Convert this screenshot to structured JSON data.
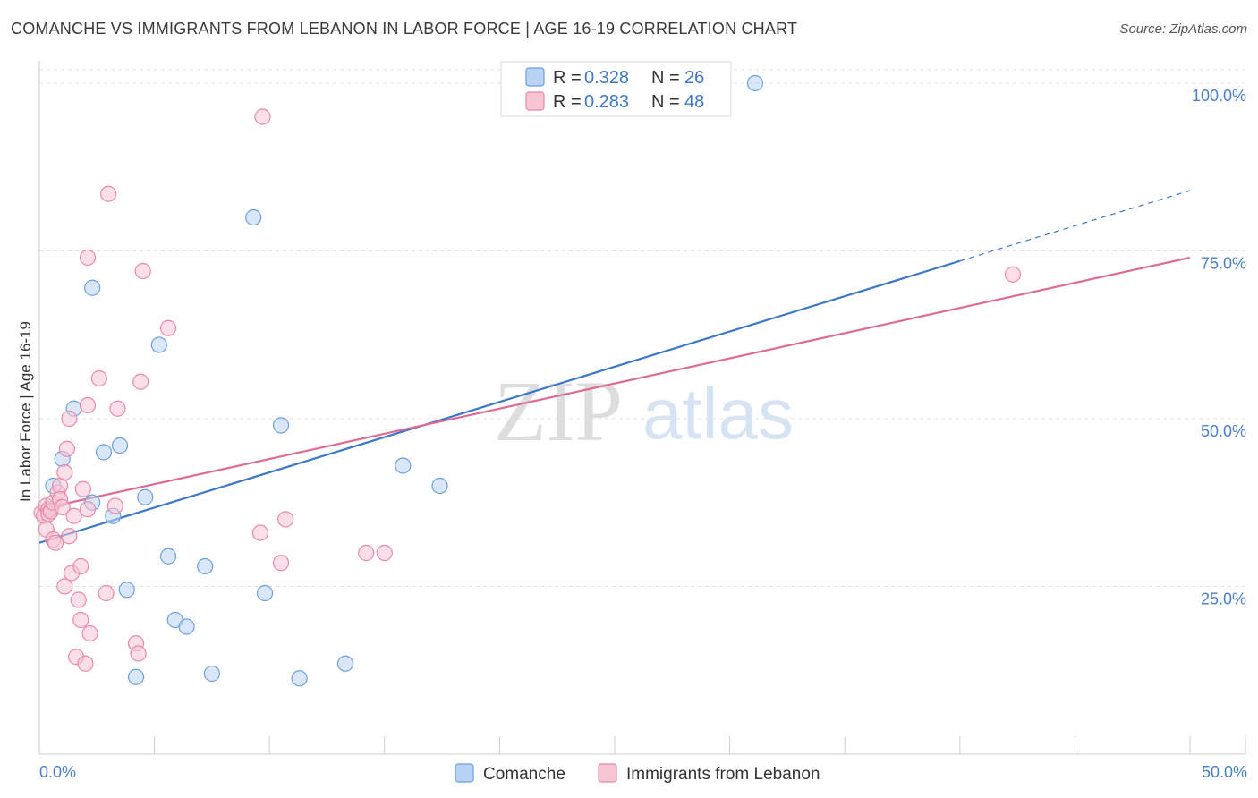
{
  "header": {
    "title": "COMANCHE VS IMMIGRANTS FROM LEBANON IN LABOR FORCE | AGE 16-19 CORRELATION CHART",
    "source": "Source: ZipAtlas.com"
  },
  "watermark": {
    "zip": "ZIP",
    "atlas": "atlas"
  },
  "legend": {
    "r_label": "R =",
    "n_label": "N =",
    "entries": [
      {
        "name": "Comanche",
        "r": "0.328",
        "n": "26",
        "color": "#6aa0e0",
        "fill": "#b9d3f4"
      },
      {
        "name": "Immigrants from Lebanon",
        "r": "0.283",
        "n": "48",
        "color": "#e889a8",
        "fill": "#f8c5d5"
      }
    ]
  },
  "chart_data": {
    "type": "scatter",
    "title": "COMANCHE VS IMMIGRANTS FROM LEBANON IN LABOR FORCE | AGE 16-19 CORRELATION CHART",
    "xlabel": "",
    "ylabel": "In Labor Force | Age 16-19",
    "xlim": [
      0,
      50
    ],
    "ylim": [
      0,
      102
    ],
    "x_tick_labels": [
      "0.0%",
      "50.0%"
    ],
    "y_ticks": [
      25,
      50,
      75,
      100
    ],
    "y_tick_labels": [
      "25.0%",
      "50.0%",
      "75.0%",
      "100.0%"
    ],
    "grid": true,
    "series": [
      {
        "name": "Comanche",
        "color": "#3b78c9",
        "fill": "#b9d3f4",
        "trend": {
          "x0": 0,
          "y0": 31.5,
          "x1": 40,
          "y1": 73.5,
          "dash_to_x": 50,
          "dash_to_y": 84
        },
        "points": [
          [
            0.5,
            36.5
          ],
          [
            0.6,
            40
          ],
          [
            1.0,
            44
          ],
          [
            1.5,
            51.5
          ],
          [
            2.3,
            37.5
          ],
          [
            2.3,
            69.5
          ],
          [
            2.8,
            45
          ],
          [
            3.2,
            35.5
          ],
          [
            3.5,
            46
          ],
          [
            3.8,
            24.5
          ],
          [
            4.2,
            11.5
          ],
          [
            4.6,
            38.3
          ],
          [
            5.2,
            61
          ],
          [
            5.6,
            29.5
          ],
          [
            5.9,
            20
          ],
          [
            6.4,
            19
          ],
          [
            7.2,
            28
          ],
          [
            7.5,
            12
          ],
          [
            9.3,
            80
          ],
          [
            9.8,
            24
          ],
          [
            10.5,
            49
          ],
          [
            11.3,
            11.3
          ],
          [
            13.3,
            13.5
          ],
          [
            15.8,
            43
          ],
          [
            17.4,
            40
          ],
          [
            31.1,
            100
          ]
        ]
      },
      {
        "name": "Immigrants from Lebanon",
        "color": "#e06a94",
        "fill": "#f8c5d5",
        "trend": {
          "x0": 0,
          "y0": 36.5,
          "x1": 50,
          "y1": 74
        },
        "points": [
          [
            0.1,
            36
          ],
          [
            0.2,
            35.5
          ],
          [
            0.3,
            37
          ],
          [
            0.3,
            33.5
          ],
          [
            0.4,
            36.5
          ],
          [
            0.4,
            35.8
          ],
          [
            0.5,
            36.2
          ],
          [
            0.6,
            37.5
          ],
          [
            0.6,
            32
          ],
          [
            0.7,
            31.5
          ],
          [
            0.8,
            39
          ],
          [
            0.9,
            40
          ],
          [
            0.9,
            38
          ],
          [
            1.0,
            36.8
          ],
          [
            1.1,
            25
          ],
          [
            1.1,
            42
          ],
          [
            1.2,
            45.5
          ],
          [
            1.3,
            50
          ],
          [
            1.3,
            32.5
          ],
          [
            1.4,
            27
          ],
          [
            1.5,
            35.5
          ],
          [
            1.6,
            14.5
          ],
          [
            1.7,
            23
          ],
          [
            1.8,
            28
          ],
          [
            1.8,
            20
          ],
          [
            1.9,
            39.5
          ],
          [
            2.0,
            13.5
          ],
          [
            2.1,
            74
          ],
          [
            2.1,
            52
          ],
          [
            2.1,
            36.5
          ],
          [
            2.2,
            18
          ],
          [
            2.6,
            56
          ],
          [
            2.9,
            24
          ],
          [
            3.0,
            83.5
          ],
          [
            3.3,
            37
          ],
          [
            3.4,
            51.5
          ],
          [
            4.2,
            16.5
          ],
          [
            4.3,
            15
          ],
          [
            4.4,
            55.5
          ],
          [
            4.5,
            72
          ],
          [
            5.6,
            63.5
          ],
          [
            9.6,
            33
          ],
          [
            9.7,
            95
          ],
          [
            10.5,
            28.5
          ],
          [
            10.7,
            35
          ],
          [
            14.2,
            30
          ],
          [
            15.0,
            30
          ],
          [
            42.3,
            71.5
          ]
        ]
      }
    ]
  }
}
